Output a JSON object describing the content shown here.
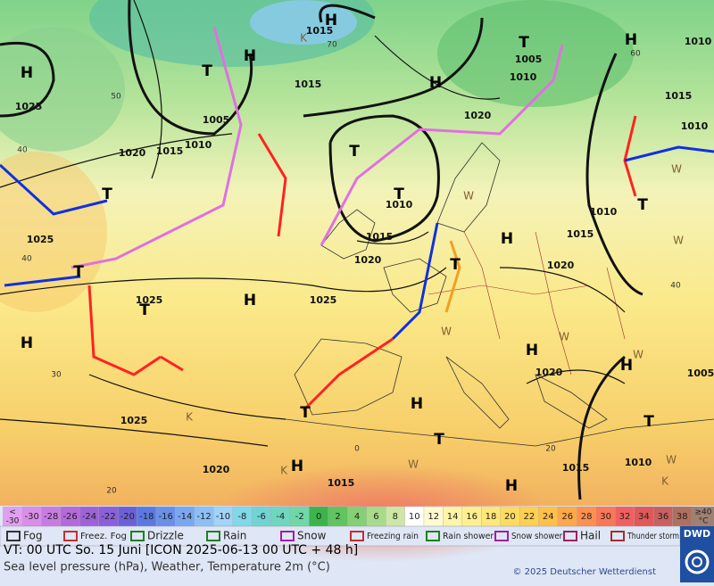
{
  "map": {
    "pressure_labels": [
      "1015",
      "1015",
      "1025",
      "1005",
      "1010",
      "1015",
      "1020",
      "1020",
      "1010",
      "1005",
      "1015",
      "1010",
      "1010",
      "1015",
      "1020",
      "1025",
      "1025",
      "1025",
      "1020",
      "1015",
      "1010",
      "1020",
      "1025",
      "1020",
      "1015",
      "1015",
      "1010",
      "1005",
      "1010"
    ],
    "isotherm_labels": [
      "50",
      "40",
      "40",
      "30",
      "20",
      "60",
      "70",
      "40",
      "20",
      "0"
    ],
    "highs": [
      "H",
      "H",
      "H",
      "H",
      "H",
      "H",
      "H",
      "H",
      "H",
      "H",
      "H",
      "H",
      "H"
    ],
    "lows": [
      "T",
      "T",
      "T",
      "T",
      "T",
      "T",
      "T",
      "T",
      "T",
      "T",
      "T",
      "T"
    ],
    "w_labels": [
      "W",
      "W",
      "W",
      "W",
      "W",
      "W",
      "W",
      "W"
    ],
    "k_labels": [
      "K",
      "K",
      "K",
      "K"
    ]
  },
  "scale": {
    "low_label": [
      "<",
      "-30"
    ],
    "values": [
      -30,
      -28,
      -26,
      -24,
      -22,
      -20,
      -18,
      -16,
      -14,
      -12,
      -10,
      -8,
      -6,
      -4,
      -2,
      0,
      2,
      4,
      6,
      8,
      10,
      12,
      14,
      16,
      18,
      20,
      22,
      24,
      26,
      28,
      30,
      32,
      34,
      36,
      38
    ],
    "high_label": [
      "≥40",
      "°C"
    ]
  },
  "legend": [
    "Fog",
    "Freez. Fog",
    "Drizzle",
    "Rain",
    "Snow",
    "Freezing rain",
    "Rain shower",
    "Snow shower",
    "Hail",
    "Thunder storm"
  ],
  "footer": {
    "valid_time": "VT: 00 UTC So.  15 Juni [ICON 2025-06-13  00 UTC + 48 h]",
    "description": "Sea level pressure (hPa), Weather, Temperature 2m (°C)",
    "copyright": "© 2025 Deutscher Wetterdienst",
    "logo": "DWD"
  }
}
